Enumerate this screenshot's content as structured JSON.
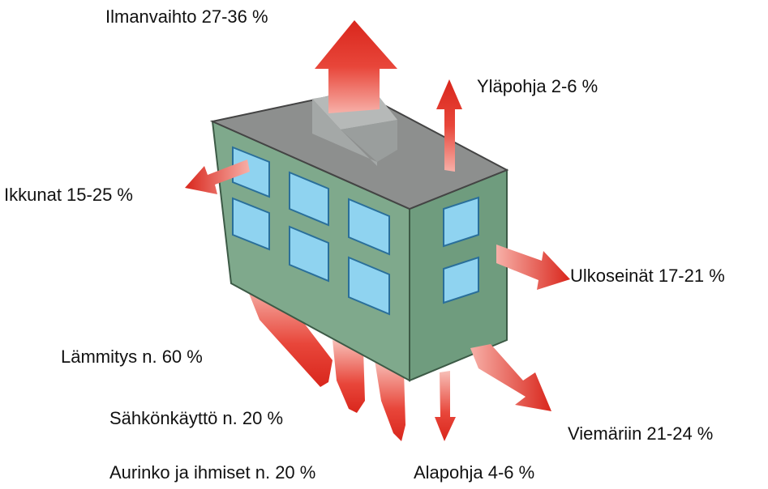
{
  "labels": [
    "Ilmanvaihto 27-36 %",
    "Yläpohja 2-6 %",
    "Ikkunat 15-25 %",
    "Ulkoseinät 17-21 %",
    "Lämmitys n. 60 %",
    "Sähkönkäyttö n. 20 %",
    "Viemäriin 21-24 %",
    "Aurinko ja ihmiset n. 20 %",
    "Alapohja 4-6 %"
  ]
}
